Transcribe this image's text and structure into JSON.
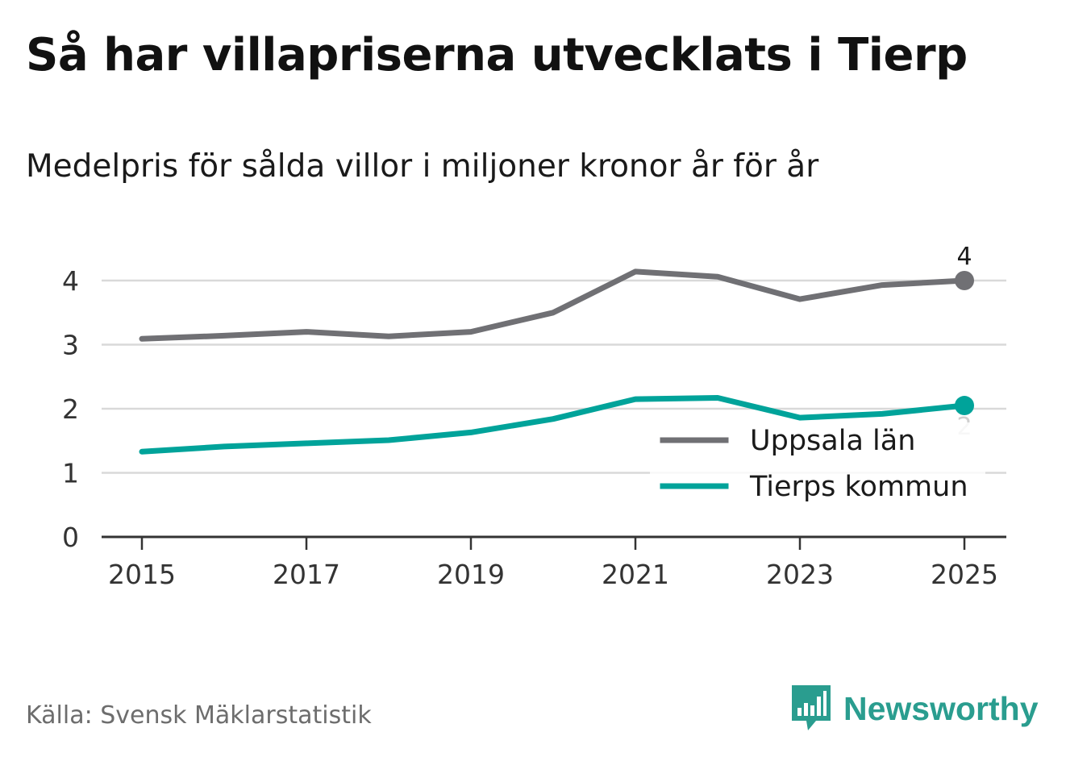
{
  "title": "Så har villapriserna utvecklats i Tierp",
  "subtitle": "Medelpris för sålda villor i miljoner kronor år för år",
  "source": "Källa: Svensk Mäklarstatistik",
  "brand": {
    "name": "Newsworthy",
    "icon": "newsworthy-logo-icon",
    "color": "#2a9d8f"
  },
  "chart_data": {
    "type": "line",
    "title": "Så har villapriserna utvecklats i Tierp",
    "subtitle": "Medelpris för sålda villor i miljoner kronor år för år",
    "xlabel": "",
    "ylabel": "",
    "x": [
      2015,
      2016,
      2017,
      2018,
      2019,
      2020,
      2021,
      2022,
      2023,
      2024,
      2025
    ],
    "x_ticks": [
      "2015",
      "2017",
      "2019",
      "2021",
      "2023",
      "2025"
    ],
    "y_ticks": [
      "0",
      "1",
      "2",
      "3",
      "4"
    ],
    "xlim": [
      2015,
      2025
    ],
    "ylim": [
      0,
      4
    ],
    "grid": true,
    "legend_position": "bottom-right",
    "series": [
      {
        "name": "Uppsala län",
        "color": "#707074",
        "values": [
          3.09,
          3.14,
          3.2,
          3.13,
          3.2,
          3.5,
          4.14,
          4.06,
          3.71,
          3.93,
          4.0
        ],
        "end_label": "4"
      },
      {
        "name": "Tierps kommun",
        "color": "#00a39a",
        "values": [
          1.33,
          1.41,
          1.46,
          1.51,
          1.63,
          1.84,
          2.15,
          2.17,
          1.86,
          1.92,
          2.05
        ],
        "end_label": "2"
      }
    ]
  }
}
